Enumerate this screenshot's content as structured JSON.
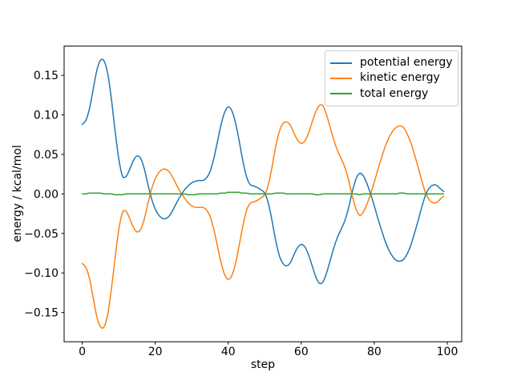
{
  "figure": {
    "background": "#ffffff"
  },
  "chart_data": {
    "type": "line",
    "title": "",
    "xlabel": "step",
    "ylabel": "energy / kcal/mol",
    "xlim": [
      -4.95,
      103.95
    ],
    "ylim": [
      -0.187,
      0.187
    ],
    "grid": false,
    "xticks": [
      0,
      20,
      40,
      60,
      80,
      100
    ],
    "xtick_labels": [
      "0",
      "20",
      "40",
      "60",
      "80",
      "100"
    ],
    "yticks": [
      0.15,
      0.1,
      0.05,
      0.0,
      -0.05,
      -0.1,
      -0.15
    ],
    "ytick_labels": [
      "0.15",
      "0.10",
      "0.05",
      "0.00",
      "−0.05",
      "−0.10",
      "−0.15"
    ],
    "legend": {
      "position": "upper right",
      "border_color": "#cccccc",
      "background": "#ffffff"
    },
    "axis_color": "#000000",
    "x": [
      0,
      1,
      2,
      3,
      4,
      5,
      6,
      7,
      8,
      9,
      10,
      11,
      12,
      13,
      14,
      15,
      16,
      17,
      18,
      19,
      20,
      21,
      22,
      23,
      24,
      25,
      26,
      27,
      28,
      29,
      30,
      31,
      32,
      33,
      34,
      35,
      36,
      37,
      38,
      39,
      40,
      41,
      42,
      43,
      44,
      45,
      46,
      47,
      48,
      49,
      50,
      51,
      52,
      53,
      54,
      55,
      56,
      57,
      58,
      59,
      60,
      61,
      62,
      63,
      64,
      65,
      66,
      67,
      68,
      69,
      70,
      71,
      72,
      73,
      74,
      75,
      76,
      77,
      78,
      79,
      80,
      81,
      82,
      83,
      84,
      85,
      86,
      87,
      88,
      89,
      90,
      91,
      92,
      93,
      94,
      95,
      96,
      97,
      98,
      99
    ],
    "series": [
      {
        "name": "potential energy",
        "color": "#1f77b4",
        "values": [
          0.088,
          0.093,
          0.108,
          0.132,
          0.156,
          0.169,
          0.168,
          0.152,
          0.12,
          0.08,
          0.045,
          0.023,
          0.022,
          0.031,
          0.042,
          0.048,
          0.045,
          0.032,
          0.012,
          -0.006,
          -0.019,
          -0.027,
          -0.031,
          -0.031,
          -0.027,
          -0.019,
          -0.01,
          -0.002,
          0.005,
          0.01,
          0.014,
          0.016,
          0.017,
          0.017,
          0.02,
          0.028,
          0.044,
          0.065,
          0.087,
          0.103,
          0.11,
          0.105,
          0.09,
          0.067,
          0.042,
          0.022,
          0.012,
          0.01,
          0.008,
          0.005,
          0.001,
          -0.012,
          -0.034,
          -0.059,
          -0.078,
          -0.088,
          -0.091,
          -0.087,
          -0.077,
          -0.068,
          -0.064,
          -0.067,
          -0.077,
          -0.091,
          -0.105,
          -0.113,
          -0.111,
          -0.099,
          -0.083,
          -0.067,
          -0.054,
          -0.044,
          -0.033,
          -0.017,
          0.003,
          0.019,
          0.026,
          0.023,
          0.013,
          0.0,
          -0.015,
          -0.031,
          -0.046,
          -0.06,
          -0.071,
          -0.079,
          -0.084,
          -0.085,
          -0.083,
          -0.076,
          -0.065,
          -0.05,
          -0.034,
          -0.017,
          -0.002,
          0.007,
          0.011,
          0.011,
          0.007,
          0.003
        ]
      },
      {
        "name": "kinetic energy",
        "color": "#ff7f0e",
        "values": [
          -0.088,
          -0.093,
          -0.107,
          -0.131,
          -0.155,
          -0.168,
          -0.168,
          -0.152,
          -0.12,
          -0.081,
          -0.046,
          -0.024,
          -0.022,
          -0.031,
          -0.042,
          -0.048,
          -0.045,
          -0.032,
          -0.012,
          0.006,
          0.019,
          0.027,
          0.031,
          0.031,
          0.027,
          0.019,
          0.01,
          0.002,
          -0.005,
          -0.011,
          -0.015,
          -0.017,
          -0.017,
          -0.017,
          -0.02,
          -0.028,
          -0.044,
          -0.065,
          -0.086,
          -0.102,
          -0.108,
          -0.103,
          -0.088,
          -0.065,
          -0.041,
          -0.021,
          -0.012,
          -0.01,
          -0.008,
          -0.005,
          -0.001,
          0.012,
          0.034,
          0.06,
          0.079,
          0.089,
          0.091,
          0.087,
          0.077,
          0.068,
          0.064,
          0.067,
          0.077,
          0.091,
          0.104,
          0.112,
          0.111,
          0.099,
          0.083,
          0.067,
          0.054,
          0.044,
          0.033,
          0.017,
          -0.003,
          -0.019,
          -0.027,
          -0.023,
          -0.013,
          0.0,
          0.015,
          0.031,
          0.046,
          0.06,
          0.071,
          0.079,
          0.084,
          0.086,
          0.084,
          0.076,
          0.065,
          0.05,
          0.034,
          0.017,
          0.002,
          -0.007,
          -0.011,
          -0.011,
          -0.007,
          -0.003
        ]
      },
      {
        "name": "total energy",
        "color": "#2ca02c",
        "values": [
          0.0,
          0.0,
          0.001,
          0.001,
          0.001,
          0.001,
          0.0,
          0.0,
          0.0,
          -0.001,
          -0.001,
          -0.001,
          0.0,
          0.0,
          0.0,
          0.0,
          0.0,
          0.0,
          0.0,
          0.0,
          0.0,
          0.0,
          0.0,
          0.0,
          0.0,
          0.0,
          0.0,
          0.0,
          0.0,
          -0.001,
          -0.001,
          -0.001,
          0.0,
          0.0,
          0.0,
          0.0,
          0.0,
          0.0,
          0.001,
          0.001,
          0.002,
          0.002,
          0.002,
          0.002,
          0.001,
          0.001,
          0.0,
          0.0,
          0.0,
          0.0,
          0.0,
          0.0,
          0.0,
          0.001,
          0.001,
          0.001,
          0.0,
          0.0,
          0.0,
          0.0,
          0.0,
          0.0,
          0.0,
          0.0,
          -0.001,
          -0.001,
          0.0,
          0.0,
          0.0,
          0.0,
          0.0,
          0.0,
          0.0,
          0.0,
          0.0,
          0.0,
          -0.001,
          0.0,
          0.0,
          0.0,
          0.0,
          0.0,
          0.0,
          0.0,
          0.0,
          0.0,
          0.0,
          0.001,
          0.001,
          0.0,
          0.0,
          0.0,
          0.0,
          0.0,
          0.0,
          0.0,
          0.0,
          0.0,
          0.0,
          0.0
        ]
      }
    ]
  }
}
